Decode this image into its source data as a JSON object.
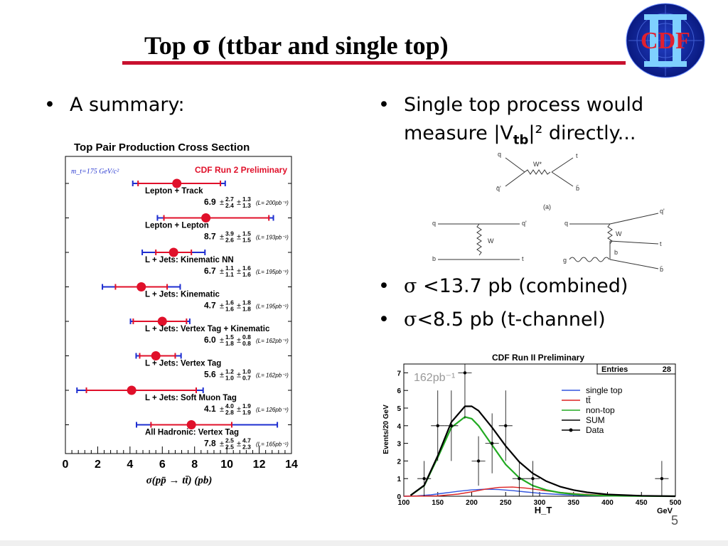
{
  "slide": {
    "title_prefix": "Top ",
    "title_sigma": "σ",
    "title_suffix": " (ttbar and single top)",
    "logo_text": "CDF",
    "page_number": "5"
  },
  "bullets": {
    "summary": "A summary:",
    "single_top_1": "Single top process would",
    "single_top_2a": "measure |V",
    "single_top_2sub": "tb",
    "single_top_2b": "|² directly...",
    "sigma_combined_sym": "σ",
    "sigma_combined": " <13.7 pb (combined)",
    "sigma_tchannel_sym": "σ",
    "sigma_tchannel": "<8.5 pb (t-channel)"
  },
  "chart_data": [
    {
      "type": "scatter",
      "title": "Top Pair Production Cross Section",
      "mass_note": "m_t=175 GeV/c²",
      "prelim_label": "CDF Run 2 Preliminary",
      "xlabel": "σ(pp̄ → tt̄) (pb)",
      "xlim": [
        0,
        14
      ],
      "xticks": [
        "0",
        "2",
        "4",
        "6",
        "8",
        "10",
        "12",
        "14"
      ],
      "measurements": [
        {
          "label": "Lepton + Track",
          "value": 6.9,
          "stat_up": 2.7,
          "stat_dn": 2.4,
          "syst_up": 1.3,
          "syst_dn": 1.3,
          "lumi": "(L= 200pb⁻¹)",
          "value_text": "6.9"
        },
        {
          "label": "Lepton + Lepton",
          "value": 8.7,
          "stat_up": 3.9,
          "stat_dn": 2.6,
          "syst_up": 1.5,
          "syst_dn": 1.5,
          "lumi": "(L= 193pb⁻¹)",
          "value_text": "8.7"
        },
        {
          "label": "L + Jets: Kinematic NN",
          "value": 6.7,
          "stat_up": 1.1,
          "stat_dn": 1.1,
          "syst_up": 1.6,
          "syst_dn": 1.6,
          "lumi": "(L= 195pb⁻¹)",
          "value_text": "6.7"
        },
        {
          "label": "L + Jets: Kinematic",
          "value": 4.7,
          "stat_up": 1.6,
          "stat_dn": 1.6,
          "syst_up": 1.8,
          "syst_dn": 1.8,
          "lumi": "(L= 195pb⁻¹)",
          "value_text": "4.7"
        },
        {
          "label": "L + Jets: Vertex Tag + Kinematic",
          "value": 6.0,
          "stat_up": 1.5,
          "stat_dn": 1.8,
          "syst_up": 0.8,
          "syst_dn": 0.8,
          "lumi": "(L= 162pb⁻¹)",
          "value_text": "6.0"
        },
        {
          "label": "L + Jets: Vertex Tag",
          "value": 5.6,
          "stat_up": 1.2,
          "stat_dn": 1.0,
          "syst_up": 1.0,
          "syst_dn": 0.7,
          "lumi": "(L= 162pb⁻¹)",
          "value_text": "5.6"
        },
        {
          "label": "L + Jets: Soft Muon Tag",
          "value": 4.1,
          "stat_up": 4.0,
          "stat_dn": 2.8,
          "syst_up": 1.9,
          "syst_dn": 1.9,
          "lumi": "(L= 126pb⁻¹)",
          "value_text": "4.1"
        },
        {
          "label": "All Hadronic: Vertex Tag",
          "value": 7.8,
          "stat_up": 2.5,
          "stat_dn": 2.5,
          "syst_up": 4.7,
          "syst_dn": 2.3,
          "lumi": "(L= 165pb⁻¹)",
          "value_text": "7.8"
        }
      ],
      "colors": {
        "stat": "#e0102a",
        "total": "#1e2ed0",
        "point": "#e0102a"
      }
    },
    {
      "type": "line",
      "title": "CDF Run II Preliminary",
      "lumi_label": "162pb⁻¹",
      "entries_label": "Entries",
      "entries_value": "28",
      "xlabel": "H_T",
      "xunit": "GeV",
      "ylabel": "Events/20 GeV",
      "xlim": [
        100,
        500
      ],
      "ylim": [
        0,
        7.5
      ],
      "xticks": [
        "100",
        "150",
        "200",
        "250",
        "300",
        "350",
        "400",
        "450",
        "500"
      ],
      "yticks": [
        "0",
        "1",
        "2",
        "3",
        "4",
        "5",
        "6",
        "7"
      ],
      "series": [
        {
          "name": "single top",
          "color": "#3355dd",
          "x": [
            100,
            120,
            140,
            160,
            180,
            200,
            220,
            240,
            260,
            280,
            300,
            320,
            340,
            360,
            380,
            400,
            450,
            500
          ],
          "y": [
            0,
            0.02,
            0.08,
            0.18,
            0.28,
            0.36,
            0.4,
            0.38,
            0.32,
            0.24,
            0.17,
            0.12,
            0.08,
            0.05,
            0.03,
            0.02,
            0.01,
            0
          ]
        },
        {
          "name": "tt̄",
          "color": "#dd2222",
          "x": [
            100,
            150,
            180,
            200,
            220,
            240,
            260,
            280,
            300,
            320,
            340,
            360,
            380,
            400,
            450,
            500
          ],
          "y": [
            0,
            0.02,
            0.12,
            0.25,
            0.4,
            0.5,
            0.52,
            0.46,
            0.36,
            0.26,
            0.18,
            0.12,
            0.08,
            0.05,
            0.02,
            0
          ]
        },
        {
          "name": "non-top",
          "color": "#22aa22",
          "x": [
            110,
            130,
            150,
            170,
            190,
            200,
            210,
            230,
            250,
            270,
            290,
            310,
            330,
            350,
            370,
            400,
            450,
            500
          ],
          "y": [
            0.05,
            0.6,
            2.2,
            3.9,
            4.5,
            4.4,
            4.0,
            2.9,
            1.8,
            1.05,
            0.6,
            0.35,
            0.2,
            0.12,
            0.07,
            0.03,
            0.01,
            0
          ]
        },
        {
          "name": "SUM",
          "color": "#000000",
          "x": [
            110,
            130,
            150,
            170,
            190,
            200,
            210,
            230,
            250,
            270,
            290,
            310,
            330,
            350,
            370,
            400,
            450,
            500
          ],
          "y": [
            0.05,
            0.62,
            2.3,
            4.2,
            5.1,
            5.1,
            4.85,
            3.9,
            2.85,
            1.95,
            1.3,
            0.85,
            0.55,
            0.35,
            0.22,
            0.1,
            0.03,
            0
          ]
        },
        {
          "name": "Data",
          "color": "#000000",
          "x": [
            130,
            150,
            170,
            190,
            210,
            230,
            250,
            270,
            290,
            480
          ],
          "y": [
            1,
            4,
            4,
            7,
            2,
            3,
            4,
            1,
            1,
            1
          ],
          "err": [
            1,
            2,
            2,
            2.6,
            1.4,
            1.7,
            2,
            1,
            1,
            1
          ]
        }
      ]
    }
  ],
  "feynman": {
    "s_channel": {
      "labels": [
        "q",
        "q̄'",
        "W*",
        "t",
        "b̄",
        "(a)"
      ]
    },
    "t_channel": {
      "labels": [
        "q",
        "q'",
        "W",
        "b",
        "t"
      ]
    },
    "wg_fusion": {
      "labels": [
        "q",
        "q'",
        "W",
        "t",
        "b",
        "g",
        "b̄"
      ]
    }
  }
}
